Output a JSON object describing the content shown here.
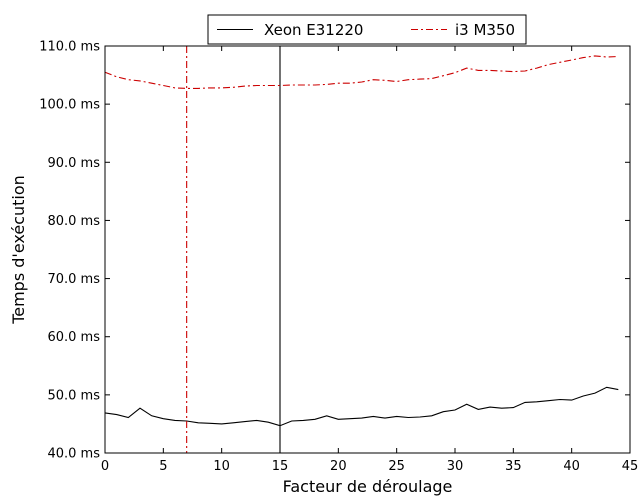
{
  "chart_data": {
    "type": "line",
    "xlabel": "Facteur de déroulage",
    "ylabel": "Temps d'exécution",
    "xlim": [
      0,
      45
    ],
    "ylim": [
      40.0,
      110.0
    ],
    "xticks": [
      0,
      5,
      10,
      15,
      20,
      25,
      30,
      35,
      40,
      45
    ],
    "xtick_labels": [
      "0",
      "5",
      "10",
      "15",
      "20",
      "25",
      "30",
      "35",
      "40",
      "45"
    ],
    "yticks": [
      40,
      50,
      60,
      70,
      80,
      90,
      100,
      110
    ],
    "ytick_labels": [
      "40.0 ms",
      "50.0 ms",
      "60.0 ms",
      "70.0 ms",
      "80.0 ms",
      "90.0 ms",
      "100.0 ms",
      "110.0 ms"
    ],
    "grid": false,
    "legend": {
      "placement": "top-center",
      "outside": true
    },
    "series": [
      {
        "name": "Xeon E31220",
        "color": "#000000",
        "style": "solid",
        "x": [
          0,
          1,
          2,
          3,
          4,
          5,
          6,
          7,
          8,
          9,
          10,
          11,
          12,
          13,
          14,
          15,
          16,
          17,
          18,
          19,
          20,
          21,
          22,
          23,
          24,
          25,
          26,
          27,
          28,
          29,
          30,
          31,
          32,
          33,
          34,
          35,
          36,
          37,
          38,
          39,
          40,
          41,
          42,
          43,
          44
        ],
        "values": [
          46.9,
          46.6,
          46.1,
          47.7,
          46.4,
          45.9,
          45.6,
          45.5,
          45.2,
          45.1,
          45.0,
          45.2,
          45.4,
          45.6,
          45.3,
          44.7,
          45.5,
          45.6,
          45.8,
          46.4,
          45.8,
          45.9,
          46.0,
          46.3,
          46.0,
          46.3,
          46.1,
          46.2,
          46.4,
          47.1,
          47.4,
          48.4,
          47.5,
          47.9,
          47.7,
          47.8,
          48.7,
          48.8,
          49.0,
          49.2,
          49.1,
          49.8,
          50.3,
          51.3,
          50.9
        ],
        "vline": 15
      },
      {
        "name": "i3 M350",
        "color": "#cc0000",
        "style": "dashdot",
        "x": [
          0,
          1,
          2,
          3,
          4,
          5,
          6,
          7,
          8,
          9,
          10,
          11,
          12,
          13,
          14,
          15,
          16,
          17,
          18,
          19,
          20,
          21,
          22,
          23,
          24,
          25,
          26,
          27,
          28,
          29,
          30,
          31,
          32,
          33,
          34,
          35,
          36,
          37,
          38,
          39,
          40,
          41,
          42,
          43,
          44
        ],
        "values": [
          105.5,
          104.7,
          104.2,
          104.0,
          103.6,
          103.2,
          102.8,
          102.7,
          102.7,
          102.8,
          102.8,
          102.9,
          103.1,
          103.2,
          103.2,
          103.2,
          103.3,
          103.3,
          103.3,
          103.4,
          103.6,
          103.6,
          103.8,
          104.2,
          104.1,
          103.9,
          104.2,
          104.3,
          104.4,
          104.9,
          105.4,
          106.2,
          105.8,
          105.8,
          105.7,
          105.6,
          105.7,
          106.2,
          106.8,
          107.2,
          107.6,
          108.0,
          108.3,
          108.1,
          108.2
        ],
        "vline": 7
      }
    ]
  }
}
